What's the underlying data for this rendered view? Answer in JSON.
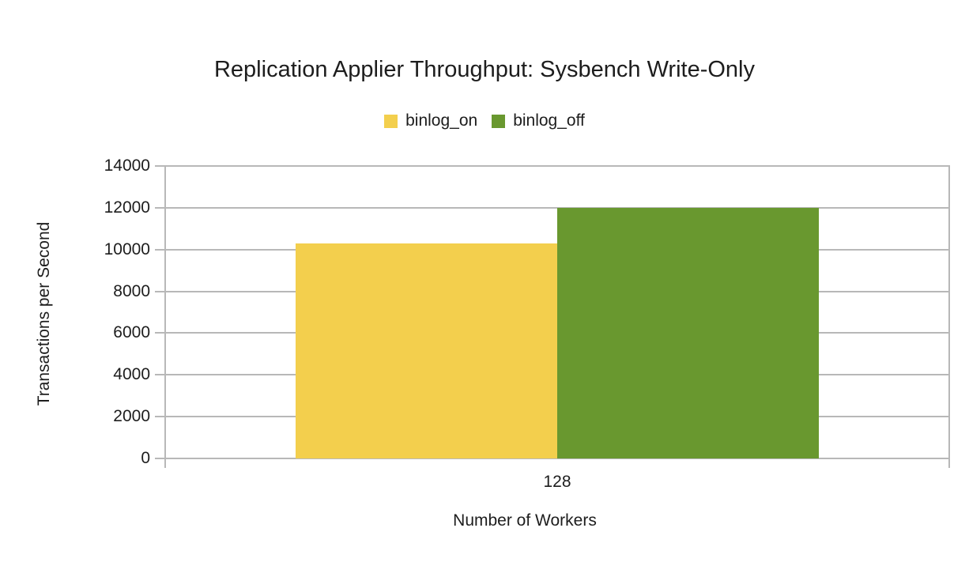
{
  "chart_data": {
    "type": "bar",
    "title": "Replication Applier Throughput: Sysbench Write-Only",
    "categories": [
      "128"
    ],
    "series": [
      {
        "name": "binlog_on",
        "color": "#f3cf4d",
        "values": [
          10280
        ]
      },
      {
        "name": "binlog_off",
        "color": "#69982f",
        "values": [
          12000
        ]
      }
    ],
    "xlabel": "Number of Workers",
    "ylabel": "Transactions per Second",
    "ylim": [
      0,
      14000
    ],
    "ytick_step": 2000,
    "yticks": [
      "14000",
      "12000",
      "10000",
      "8000",
      "6000",
      "4000",
      "2000",
      "0"
    ],
    "grid": true,
    "legend_position": "top",
    "colors": {
      "background": "#ffffff",
      "text": "#1d1d1d",
      "grid": "#b8b8b8"
    }
  }
}
